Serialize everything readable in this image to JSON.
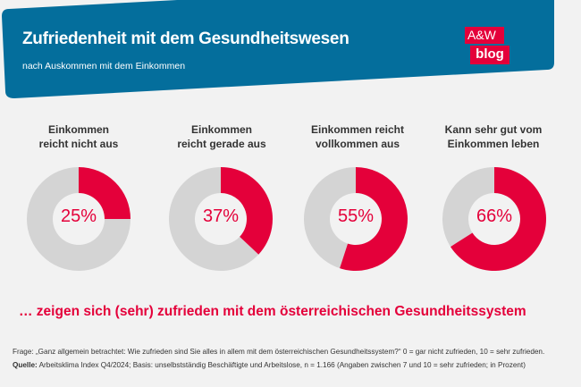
{
  "header": {
    "title": "Zufriedenheit mit dem Gesundheitswesen",
    "subtitle": "nach Auskommen mit dem Einkommen",
    "logo_top": "A&W",
    "logo_bottom": "blog"
  },
  "colors": {
    "banner": "#046e9c",
    "accent": "#e4003a",
    "remainder": "#d4d4d4",
    "background": "#f2f2f2"
  },
  "chart_data": {
    "type": "pie",
    "title": "Zufriedenheit mit dem Gesundheitswesen",
    "subtitle": "nach Auskommen mit dem Einkommen",
    "categories": [
      "Einkommen reicht nicht aus",
      "Einkommen reicht gerade aus",
      "Einkommen reicht vollkommen aus",
      "Kann sehr gut vom Einkommen leben"
    ],
    "label_lines": [
      [
        "Einkommen",
        "reicht nicht aus"
      ],
      [
        "Einkommen",
        "reicht gerade aus"
      ],
      [
        "Einkommen reicht",
        "vollkommen aus"
      ],
      [
        "Kann sehr gut vom",
        "Einkommen leben"
      ]
    ],
    "values": [
      25,
      37,
      55,
      66
    ],
    "value_labels": [
      "25%",
      "37%",
      "55%",
      "66%"
    ],
    "unit": "%",
    "annotation": "… zeigen sich (sehr) zufrieden mit dem österreichischen Gesundheitssystem"
  },
  "footer": {
    "question": "Frage: „Ganz allgemein betrachtet: Wie zufrieden sind Sie alles in allem mit dem österreichischen Gesundheitssystem?“ 0 = gar nicht zufrieden, 10 = sehr zufrieden.",
    "source_label": "Quelle:",
    "source_text": " Arbeitsklima Index Q4/2024; Basis: unselbstständig Beschäftigte und Arbeitslose, n = 1.166 (Angaben zwischen 7 und 10 = sehr zufrieden; in Prozent)"
  }
}
